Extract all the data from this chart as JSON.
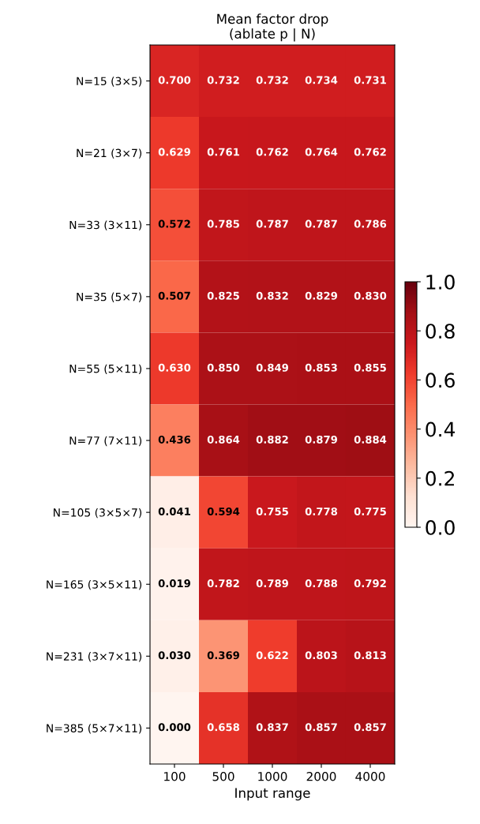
{
  "chart_data": {
    "type": "heatmap",
    "title": "Mean factor drop\n(ablate p | N)",
    "xlabel": "Input range",
    "categories": [
      "100",
      "500",
      "1000",
      "2000",
      "4000"
    ],
    "y_categories": [
      "N=15 (3×5)",
      "N=21 (3×7)",
      "N=33 (3×11)",
      "N=35 (5×7)",
      "N=55 (5×11)",
      "N=77 (7×11)",
      "N=105 (3×5×7)",
      "N=165 (3×5×11)",
      "N=231 (3×7×11)",
      "N=385 (5×7×11)"
    ],
    "cells": [
      [
        0.7,
        0.732,
        0.732,
        0.734,
        0.731
      ],
      [
        0.629,
        0.761,
        0.762,
        0.764,
        0.762
      ],
      [
        0.572,
        0.785,
        0.787,
        0.787,
        0.786
      ],
      [
        0.507,
        0.825,
        0.832,
        0.829,
        0.83
      ],
      [
        0.63,
        0.85,
        0.849,
        0.853,
        0.855
      ],
      [
        0.436,
        0.864,
        0.882,
        0.879,
        0.884
      ],
      [
        0.041,
        0.594,
        0.755,
        0.778,
        0.775
      ],
      [
        0.019,
        0.782,
        0.789,
        0.788,
        0.792
      ],
      [
        0.03,
        0.369,
        0.622,
        0.803,
        0.813
      ],
      [
        0.0,
        0.658,
        0.837,
        0.857,
        0.857
      ]
    ],
    "cell_labels": [
      [
        "0.700",
        "0.732",
        "0.732",
        "0.734",
        "0.731"
      ],
      [
        "0.629",
        "0.761",
        "0.762",
        "0.764",
        "0.762"
      ],
      [
        "0.572",
        "0.785",
        "0.787",
        "0.787",
        "0.786"
      ],
      [
        "0.507",
        "0.825",
        "0.832",
        "0.829",
        "0.830"
      ],
      [
        "0.630",
        "0.850",
        "0.849",
        "0.853",
        "0.855"
      ],
      [
        "0.436",
        "0.864",
        "0.882",
        "0.879",
        "0.884"
      ],
      [
        "0.041",
        "0.594",
        "0.755",
        "0.778",
        "0.775"
      ],
      [
        "0.019",
        "0.782",
        "0.789",
        "0.788",
        "0.792"
      ],
      [
        "0.030",
        "0.369",
        "0.622",
        "0.803",
        "0.813"
      ],
      [
        "0.000",
        "0.658",
        "0.837",
        "0.857",
        "0.857"
      ]
    ],
    "clim": [
      0.0,
      1.0
    ],
    "cticks": [
      {
        "value": 0.0,
        "label": "0.0"
      },
      {
        "value": 0.2,
        "label": "0.2"
      },
      {
        "value": 0.4,
        "label": "0.4"
      },
      {
        "value": 0.6,
        "label": "0.6"
      },
      {
        "value": 0.8,
        "label": "0.8"
      },
      {
        "value": 1.0,
        "label": "1.0"
      }
    ]
  }
}
